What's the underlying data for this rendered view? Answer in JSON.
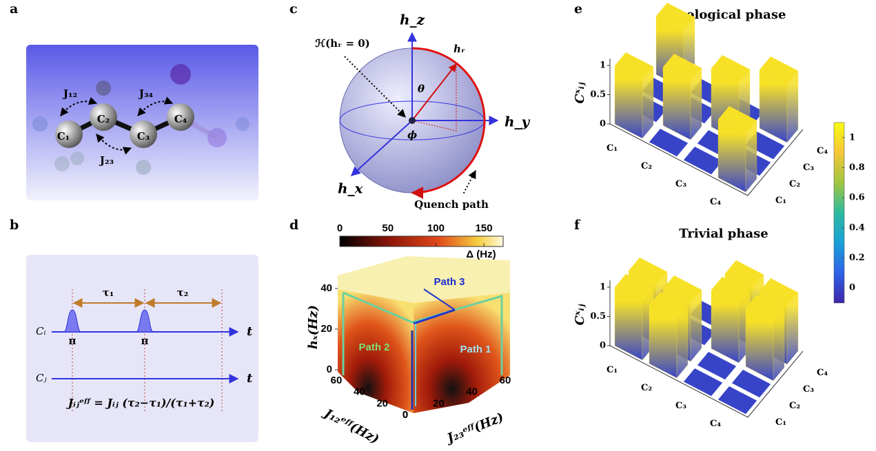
{
  "panels": {
    "a": {
      "label": "a",
      "atoms": [
        "C₁",
        "C₂",
        "C₃",
        "C₄"
      ],
      "couplings": [
        "J₁₂",
        "J₂₃",
        "J₃₄"
      ]
    },
    "b": {
      "label": "b",
      "taus": [
        "τ₁",
        "τ₂"
      ],
      "pulses": [
        "π",
        "π"
      ],
      "lines": [
        "Cᵢ",
        "Cⱼ"
      ],
      "time": "t",
      "formula": "Jᵢⱼᵉᶠᶠ = Jᵢⱼ (τ₂−τ₁)/(τ₁+τ₂)"
    },
    "c": {
      "label": "c",
      "axes": [
        "h_z",
        "h_y",
        "h_x"
      ],
      "hr": "hᵣ",
      "hamiltonian": "ℋ(hᵣ = 0)",
      "theta": "θ",
      "phi": "ϕ",
      "quench": "Quench path"
    },
    "d": {
      "label": "d",
      "colorbar": {
        "label": "Δ (Hz)",
        "lim": [
          0,
          170
        ],
        "ticks": [
          0,
          50,
          100,
          150
        ]
      },
      "hx_label": "hₓ(Hz)",
      "hx_ticks": [
        0,
        20,
        40
      ],
      "j12_label": "J₁₂ᵉᶠᶠ(Hz)",
      "j12_ticks": [
        0,
        20,
        40,
        60
      ],
      "j23_label": "J₂₃ᵉᶠᶠ(Hz)",
      "j23_ticks": [
        0,
        20,
        40,
        60
      ],
      "paths": [
        "Path 1",
        "Path 2",
        "Path 3"
      ]
    },
    "e": {
      "label": "e",
      "title": "Topological phase",
      "zlabel": "Cˣᵢⱼ",
      "zlim": [
        0,
        1
      ],
      "zticks": [
        0,
        0.5,
        1
      ],
      "rows": [
        "C₁",
        "C₂",
        "C₃",
        "C₄"
      ],
      "cols": [
        "C₁",
        "C₂",
        "C₃",
        "C₄"
      ],
      "matrix": [
        [
          1,
          0,
          0,
          1
        ],
        [
          0,
          1,
          0,
          0
        ],
        [
          0,
          0,
          1,
          0
        ],
        [
          1,
          0,
          0,
          1
        ]
      ]
    },
    "f": {
      "label": "f",
      "title": "Trivial phase",
      "zlabel": "Cˣᵢⱼ",
      "zlim": [
        0,
        1
      ],
      "zticks": [
        0,
        0.5,
        1
      ],
      "rows": [
        "C₁",
        "C₂",
        "C₃",
        "C₄"
      ],
      "cols": [
        "C₁",
        "C₂",
        "C₃",
        "C₄"
      ],
      "matrix": [
        [
          1,
          1,
          0,
          0
        ],
        [
          1,
          1,
          0,
          0
        ],
        [
          0,
          0,
          1,
          1
        ],
        [
          0,
          0,
          1,
          1
        ]
      ]
    },
    "colorbar": {
      "lim": [
        -0.1,
        1.1
      ],
      "ticks": [
        0,
        0.2,
        0.4,
        0.6,
        0.8,
        1
      ],
      "colors": [
        "#3e26a8",
        "#2f62e8",
        "#1aa0d8",
        "#2dbaa0",
        "#9fc640",
        "#f5c638",
        "#f9fb15"
      ]
    }
  }
}
